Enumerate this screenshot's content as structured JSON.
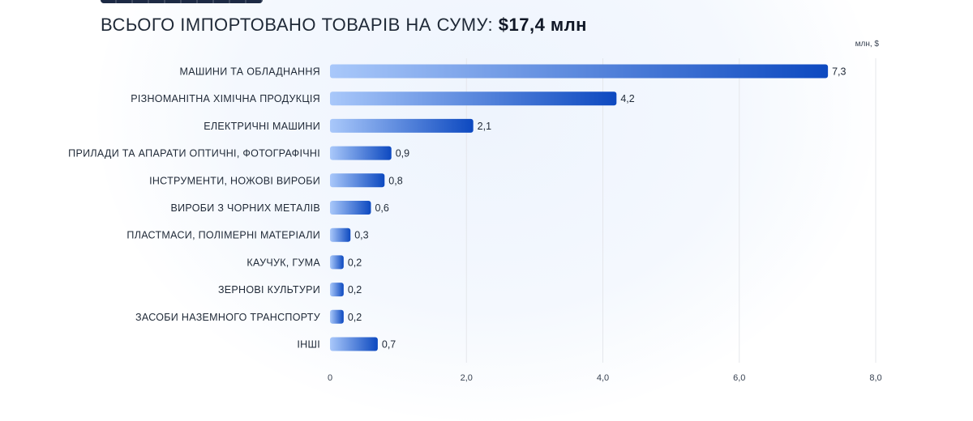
{
  "header": {
    "subtitle_prefix": "ВСЬОГО ІМПОРТОВАНО ТОВАРІВ НА СУМУ:",
    "subtitle_total": "$17,4 млн"
  },
  "colors": {
    "bar_start": "#a9c8fa",
    "bar_end": "#0d49c0",
    "grid": "#e5e7eb"
  },
  "chart_data": {
    "type": "bar",
    "orientation": "horizontal",
    "unit": "млн, $",
    "categories": [
      "МАШИНИ ТА ОБЛАДНАННЯ",
      "РІЗНОМАНІТНА ХІМІЧНА ПРОДУКЦІЯ",
      "ЕЛЕКТРИЧНІ МАШИНИ",
      "ПРИЛАДИ ТА АПАРАТИ ОПТИЧНІ, ФОТОГРАФІЧНІ",
      "ІНСТРУМЕНТИ, НОЖОВІ ВИРОБИ",
      "ВИРОБИ З ЧОРНИХ МЕТАЛІВ",
      "ПЛАСТМАСИ, ПОЛІМЕРНІ МАТЕРІАЛИ",
      "КАУЧУК, ГУМА",
      "ЗЕРНОВІ КУЛЬТУРИ",
      "ЗАСОБИ НАЗЕМНОГО ТРАНСПОРТУ",
      "ІНШІ"
    ],
    "values": [
      7.3,
      4.2,
      2.1,
      0.9,
      0.8,
      0.6,
      0.3,
      0.2,
      0.2,
      0.2,
      0.7
    ],
    "value_labels": [
      "7,3",
      "4,2",
      "2,1",
      "0,9",
      "0,8",
      "0,6",
      "0,3",
      "0,2",
      "0,2",
      "0,2",
      "0,7"
    ],
    "xlim": [
      0,
      8
    ],
    "xticks": [
      0,
      2,
      4,
      6,
      8
    ],
    "xtick_labels": [
      "0",
      "2,0",
      "4,0",
      "6,0",
      "8,0"
    ],
    "grid": true
  }
}
